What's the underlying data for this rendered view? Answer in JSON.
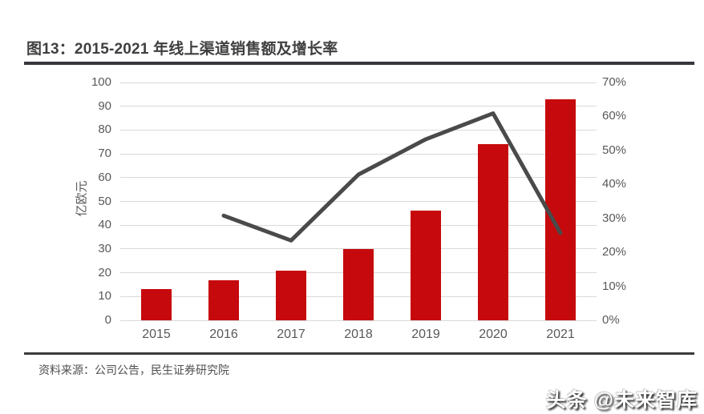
{
  "header": {
    "title": "图13：2015-2021 年线上渠道销售额及增长率"
  },
  "chart_data": {
    "type": "combo-bar-line",
    "title": "2015-2021 年线上渠道销售额及增长率",
    "categories": [
      "2015",
      "2016",
      "2017",
      "2018",
      "2019",
      "2020",
      "2021"
    ],
    "series": [
      {
        "name": "线上渠道销售额",
        "type": "bar",
        "axis": "left",
        "unit": "亿欧元",
        "color": "#c6090c",
        "values": [
          13,
          17,
          21,
          30,
          46,
          74,
          93
        ]
      },
      {
        "name": "增长率",
        "type": "line",
        "axis": "right",
        "color": "#4a4a4a",
        "values": [
          null,
          30.8,
          23.5,
          42.9,
          53.3,
          60.9,
          25.7
        ]
      }
    ],
    "left_axis": {
      "title": "亿欧元",
      "min": 0,
      "max": 100,
      "step": 10,
      "tick_labels": [
        "0",
        "10",
        "20",
        "30",
        "40",
        "50",
        "60",
        "70",
        "80",
        "90",
        "100"
      ]
    },
    "right_axis": {
      "min": 0,
      "max": 70,
      "step": 10,
      "tick_labels": [
        "0%",
        "10%",
        "20%",
        "30%",
        "40%",
        "50%",
        "60%",
        "70%"
      ]
    },
    "grid": true,
    "legend": false
  },
  "footer": {
    "source": "资料来源：公司公告，民生证券研究院"
  },
  "watermark": {
    "text": "头条 @未来智库"
  }
}
